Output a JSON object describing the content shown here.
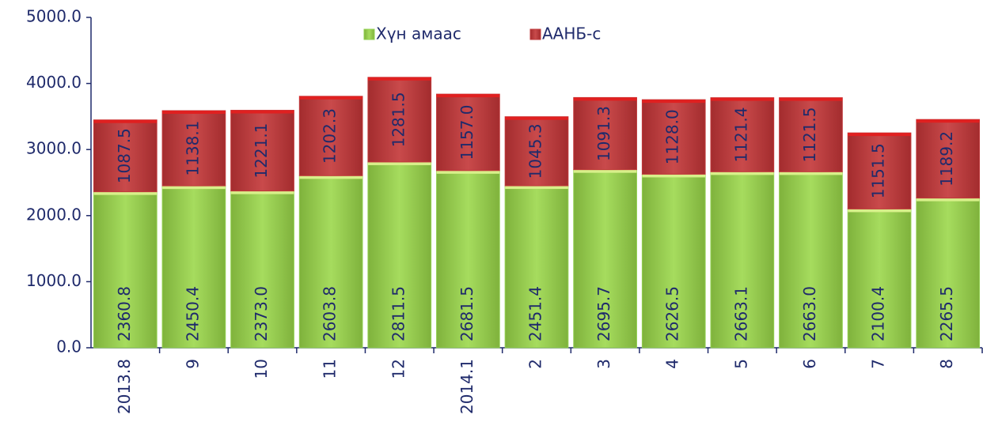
{
  "chart_data": {
    "type": "stacked_bar",
    "categories": [
      "2013.8",
      "9",
      "10",
      "11",
      "12",
      "2014.1",
      "2",
      "3",
      "4",
      "5",
      "6",
      "7",
      "8"
    ],
    "series": [
      {
        "name": "Хүн амаас",
        "color": "#92d050",
        "values": [
          2360.8,
          2450.4,
          2373.0,
          2603.8,
          2811.5,
          2681.5,
          2451.4,
          2695.7,
          2626.5,
          2663.1,
          2663.0,
          2100.4,
          2265.5
        ],
        "value_labels": [
          "2360.8",
          "2450.4",
          "2373.0",
          "2603.8",
          "2811.5",
          "2681.5",
          "2451.4",
          "2695.7",
          "2626.5",
          "2663.1",
          "2663.0",
          "2100.4",
          "2265.5"
        ]
      },
      {
        "name": "ААНБ-с",
        "color": "#c0393b",
        "values": [
          1087.5,
          1138.1,
          1221.1,
          1202.3,
          1281.5,
          1157.0,
          1045.3,
          1091.3,
          1128.0,
          1121.4,
          1121.5,
          1151.5,
          1189.2
        ],
        "value_labels": [
          "1087.5",
          "1138.1",
          "1221.1",
          "1202.3",
          "1281.5",
          "1157.0",
          "1045.3",
          "1091.3",
          "1128.0",
          "1121.4",
          "1121.5",
          "1151.5",
          "1189.2"
        ]
      }
    ],
    "ylim": [
      0,
      5000
    ],
    "yticks": [
      {
        "value": 0,
        "label": "0.0"
      },
      {
        "value": 1000,
        "label": "1000.0"
      },
      {
        "value": 2000,
        "label": "2000.0"
      },
      {
        "value": 3000,
        "label": "3000.0"
      },
      {
        "value": 4000,
        "label": "4000.0"
      },
      {
        "value": 5000,
        "label": "5000.0"
      }
    ],
    "legend": "top"
  }
}
